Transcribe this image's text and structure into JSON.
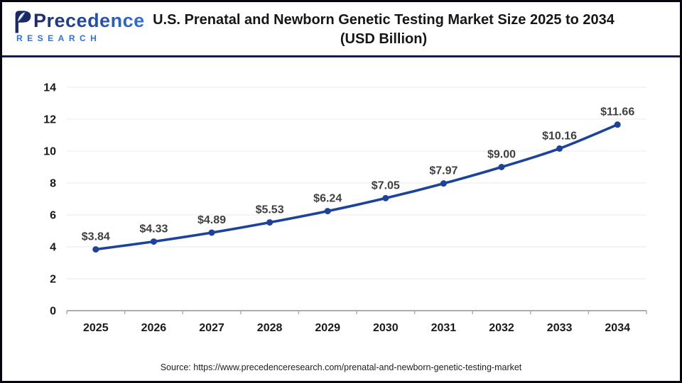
{
  "header": {
    "logo": {
      "brand": "Precedence",
      "subtitle": "RESEARCH"
    },
    "title_line1": "U.S. Prenatal and Newborn Genetic Testing Market Size 2025 to 2034",
    "title_line2": "(USD Billion)"
  },
  "footer": {
    "source": "Source: https://www.precedenceresearch.com/prenatal-and-newborn-genetic-testing-market"
  },
  "chart_data": {
    "type": "line",
    "title": "U.S. Prenatal and Newborn Genetic Testing Market Size 2025 to 2034 (USD Billion)",
    "categories": [
      "2025",
      "2026",
      "2027",
      "2028",
      "2029",
      "2030",
      "2031",
      "2032",
      "2033",
      "2034"
    ],
    "values": [
      3.84,
      4.33,
      4.89,
      5.53,
      6.24,
      7.05,
      7.97,
      9.0,
      10.16,
      11.66
    ],
    "data_labels": [
      "$3.84",
      "$4.33",
      "$4.89",
      "$5.53",
      "$6.24",
      "$7.05",
      "$7.97",
      "$9.00",
      "$10.16",
      "$11.66"
    ],
    "xlabel": "",
    "ylabel": "",
    "ylim": [
      0,
      14
    ],
    "ytick_step": 2,
    "ytick_labels": [
      "0",
      "2",
      "4",
      "6",
      "8",
      "10",
      "12",
      "14"
    ],
    "grid": true,
    "legend": false,
    "colors": {
      "line": "#1c4399",
      "marker": "#1c4399",
      "data_label": "#3f3f3f",
      "axis_label": "#1a1a1a",
      "gridline": "#e8e8e8",
      "axis_line": "#adadad",
      "divider_navy": "#171e45",
      "brand_dark": "#1c2a63",
      "brand_blue": "#2f6fe4"
    }
  }
}
